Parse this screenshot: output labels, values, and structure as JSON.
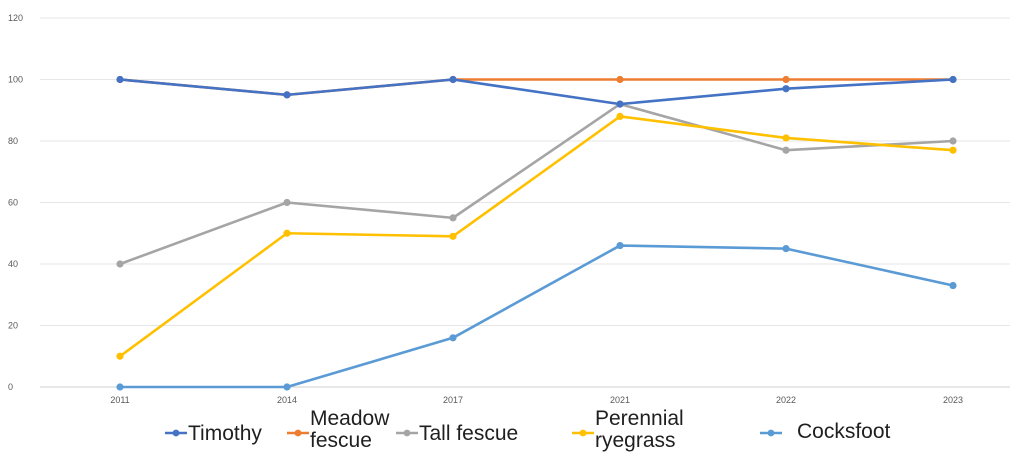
{
  "chart_data": {
    "type": "line",
    "title": "",
    "xlabel": "",
    "ylabel": "",
    "categories": [
      "2011",
      "2014",
      "2017",
      "2021",
      "2022",
      "2023"
    ],
    "ylim": [
      0,
      120
    ],
    "yticks": [
      0,
      20,
      40,
      60,
      80,
      100,
      120
    ],
    "grid": true,
    "legend_position": "bottom",
    "series": [
      {
        "name": "Timothy",
        "legend_lines": [
          "Timothy"
        ],
        "color": "#4472c4",
        "values": [
          100,
          95,
          100,
          92,
          97,
          100
        ]
      },
      {
        "name": "Meadow fescue",
        "legend_lines": [
          "Meadow",
          "fescue"
        ],
        "color": "#ed7d31",
        "values": [
          100,
          95,
          100,
          100,
          100,
          100
        ]
      },
      {
        "name": "Tall fescue",
        "legend_lines": [
          "Tall fescue"
        ],
        "color": "#a5a5a5",
        "values": [
          40,
          60,
          55,
          92,
          77,
          80
        ]
      },
      {
        "name": "Perennial ryegrass",
        "legend_lines": [
          "Perennial",
          "ryegrass"
        ],
        "color": "#ffc000",
        "values": [
          10,
          50,
          49,
          88,
          81,
          77
        ]
      },
      {
        "name": "Cocksfoot",
        "legend_lines": [
          "Cocksfoot"
        ],
        "color": "#5b9bd5",
        "values": [
          0,
          0,
          16,
          46,
          45,
          33
        ]
      }
    ]
  }
}
